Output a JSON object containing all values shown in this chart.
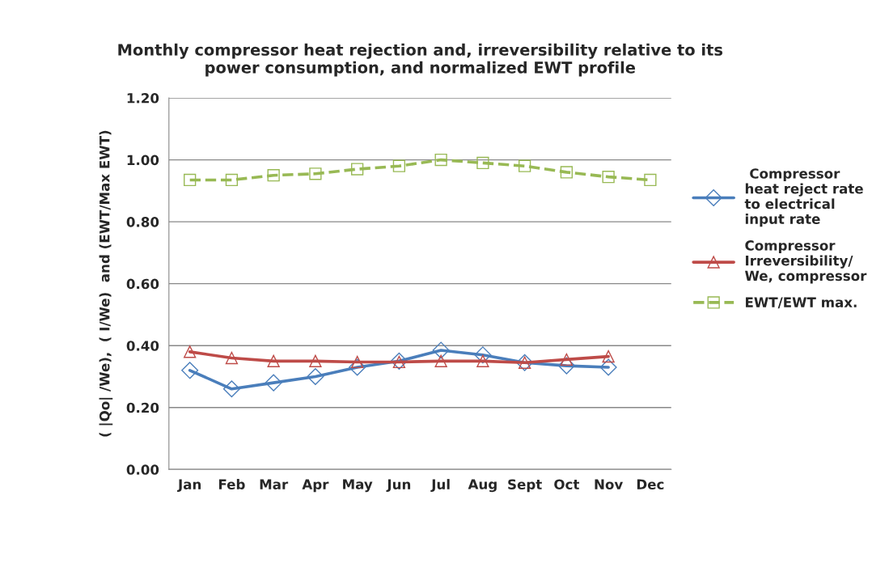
{
  "chart_data": {
    "type": "line",
    "title": "Monthly compressor heat rejection and, irreversibility relative to its\npower consumption, and normalized EWT profile",
    "ylabel": "( |Qo| /We),  ( I/We)  and (EWT/Max EWT)",
    "categories": [
      "Jan",
      "Feb",
      "Mar",
      "Apr",
      "May",
      "Jun",
      "Jul",
      "Aug",
      "Sept",
      "Oct",
      "Nov",
      "Dec"
    ],
    "series": [
      {
        "name": " Compressor\nheat reject rate\nto electrical\ninput rate",
        "color": "#4a7ebb",
        "marker": "diamond",
        "line_style": "solid",
        "values": [
          0.32,
          0.26,
          0.28,
          0.3,
          0.33,
          0.35,
          0.385,
          0.37,
          0.345,
          0.335,
          0.33,
          null
        ]
      },
      {
        "name": "Compressor\nIrreversibility/\nWe, compressor",
        "color": "#be4b48",
        "marker": "triangle",
        "line_style": "solid",
        "values": [
          0.38,
          0.36,
          0.35,
          0.35,
          0.347,
          0.347,
          0.35,
          0.35,
          0.345,
          0.355,
          0.365,
          null
        ]
      },
      {
        "name": "EWT/EWT max.",
        "color": "#98b954",
        "marker": "square",
        "line_style": "dashed",
        "values": [
          0.935,
          0.935,
          0.95,
          0.955,
          0.97,
          0.98,
          1.0,
          0.99,
          0.98,
          0.96,
          0.945,
          0.935
        ]
      }
    ],
    "ylim": [
      0,
      1.2
    ],
    "yticks": [
      {
        "value": 0,
        "label": "0.00"
      },
      {
        "value": 0.2,
        "label": "0.20"
      },
      {
        "value": 0.4,
        "label": "0.40"
      },
      {
        "value": 0.6,
        "label": "0.60"
      },
      {
        "value": 0.8,
        "label": "0.80"
      },
      {
        "value": 1.0,
        "label": "1.00"
      },
      {
        "value": 1.2,
        "label": "1.20"
      }
    ],
    "grid": "y",
    "legend": "right"
  }
}
